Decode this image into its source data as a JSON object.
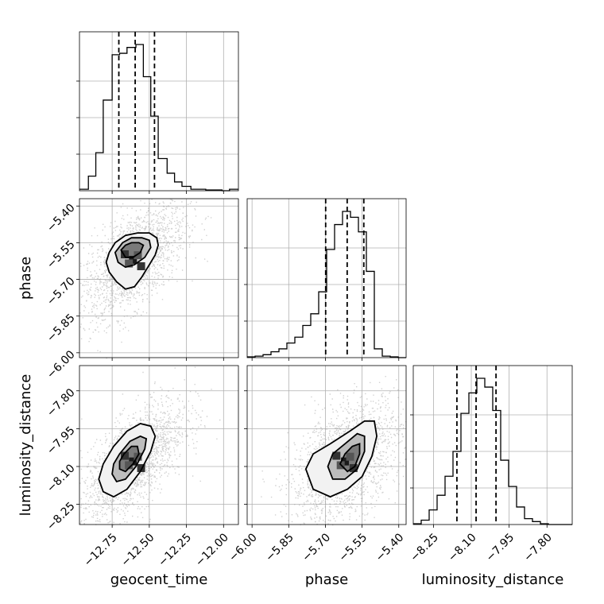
{
  "chart_data": {
    "type": "corner",
    "parameters": [
      "geocent_time",
      "phase",
      "luminosity_distance"
    ],
    "axis_labels": {
      "geocent_time": "geocent_time",
      "phase": "phase",
      "luminosity_distance": "luminosity_distance"
    },
    "ranges": {
      "geocent_time": [
        -12.97,
        -11.9
      ],
      "phase": [
        -6.02,
        -5.37
      ],
      "luminosity_distance": [
        -8.33,
        -7.7
      ]
    },
    "ticks": {
      "geocent_time": {
        "values": [
          -12.75,
          -12.5,
          -12.25,
          -12.0
        ],
        "labels": [
          "−12.75",
          "−12.50",
          "−12.25",
          "−12.00"
        ]
      },
      "phase": {
        "values": [
          -6.0,
          -5.85,
          -5.7,
          -5.55,
          -5.4
        ],
        "labels": [
          "−6.00",
          "−5.85",
          "−5.70",
          "−5.55",
          "−5.40"
        ]
      },
      "luminosity_distance": {
        "values": [
          -8.25,
          -8.1,
          -7.95,
          -7.8
        ],
        "labels": [
          "−8.25",
          "−8.10",
          "−7.95",
          "−7.80"
        ]
      }
    },
    "grid": true,
    "histograms": {
      "geocent_time": {
        "quantiles": [
          -12.705,
          -12.595,
          -12.465
        ],
        "edges": [
          -12.97,
          -12.91,
          -12.86,
          -12.81,
          -12.75,
          -12.7,
          -12.65,
          -12.59,
          -12.54,
          -12.49,
          -12.44,
          -12.38,
          -12.33,
          -12.28,
          -12.22,
          -12.17,
          -12.12,
          -12.06,
          -12.01,
          -11.96,
          -11.9
        ],
        "counts": [
          0.01,
          0.1,
          0.26,
          0.62,
          0.93,
          0.94,
          0.98,
          1.0,
          0.78,
          0.51,
          0.22,
          0.12,
          0.06,
          0.03,
          0.01,
          0.01,
          0.005,
          0.005,
          0.0,
          0.01
        ]
      },
      "phase": {
        "quantiles": [
          -5.699,
          -5.611,
          -5.543
        ],
        "edges": [
          -6.02,
          -5.9875,
          -5.955,
          -5.9225,
          -5.89,
          -5.8575,
          -5.825,
          -5.7925,
          -5.76,
          -5.7275,
          -5.695,
          -5.6625,
          -5.63,
          -5.5975,
          -5.565,
          -5.5325,
          -5.5,
          -5.4675,
          -5.435,
          -5.4025,
          -5.37
        ],
        "counts": [
          0.005,
          0.01,
          0.02,
          0.04,
          0.06,
          0.1,
          0.14,
          0.22,
          0.3,
          0.45,
          0.74,
          0.91,
          1.0,
          0.96,
          0.86,
          0.59,
          0.06,
          0.01,
          0.005,
          0.0
        ]
      },
      "luminosity_distance": {
        "quantiles": [
          -8.157,
          -8.081,
          -8.002
        ],
        "edges": [
          -8.33,
          -8.2985,
          -8.267,
          -8.2355,
          -8.204,
          -8.1725,
          -8.141,
          -8.1095,
          -8.078,
          -8.0465,
          -8.015,
          -7.9835,
          -7.952,
          -7.9205,
          -7.889,
          -7.8575,
          -7.826,
          -7.7945,
          -7.763,
          -7.7315,
          -7.7
        ],
        "counts": [
          0.005,
          0.03,
          0.1,
          0.2,
          0.33,
          0.5,
          0.76,
          0.9,
          1.0,
          0.94,
          0.78,
          0.44,
          0.26,
          0.12,
          0.04,
          0.02,
          0.005,
          0.0,
          0.0,
          0.0
        ]
      }
    },
    "scatter_2d": [
      {
        "x": "geocent_time",
        "y": "phase",
        "cluster": {
          "center_x": -12.61,
          "center_y": -5.62,
          "spread_x": 0.11,
          "spread_y": 0.075,
          "correlation": 0.6
        },
        "contour_levels": [
          [
            [
              -12.79,
              -5.63
            ],
            [
              -12.77,
              -5.67
            ],
            [
              -12.72,
              -5.71
            ],
            [
              -12.66,
              -5.74
            ],
            [
              -12.6,
              -5.73
            ],
            [
              -12.55,
              -5.69
            ],
            [
              -12.5,
              -5.64
            ],
            [
              -12.46,
              -5.6
            ],
            [
              -12.44,
              -5.56
            ],
            [
              -12.45,
              -5.53
            ],
            [
              -12.5,
              -5.51
            ],
            [
              -12.58,
              -5.51
            ],
            [
              -12.66,
              -5.52
            ],
            [
              -12.73,
              -5.55
            ],
            [
              -12.77,
              -5.59
            ]
          ],
          [
            [
              -12.73,
              -5.59
            ],
            [
              -12.71,
              -5.63
            ],
            [
              -12.66,
              -5.65
            ],
            [
              -12.6,
              -5.64
            ],
            [
              -12.53,
              -5.61
            ],
            [
              -12.49,
              -5.57
            ],
            [
              -12.5,
              -5.54
            ],
            [
              -12.55,
              -5.53
            ],
            [
              -12.62,
              -5.53
            ],
            [
              -12.68,
              -5.55
            ]
          ],
          [
            [
              -12.69,
              -5.58
            ],
            [
              -12.66,
              -5.61
            ],
            [
              -12.61,
              -5.61
            ],
            [
              -12.56,
              -5.59
            ],
            [
              -12.54,
              -5.56
            ],
            [
              -12.57,
              -5.55
            ],
            [
              -12.62,
              -5.55
            ],
            [
              -12.66,
              -5.56
            ]
          ]
        ]
      },
      {
        "x": "geocent_time",
        "y": "luminosity_distance",
        "cluster": {
          "center_x": -12.61,
          "center_y": -8.08,
          "spread_x": 0.11,
          "spread_y": 0.075,
          "correlation": 0.65
        },
        "contour_levels": [
          [
            [
              -12.84,
              -8.15
            ],
            [
              -12.81,
              -8.2
            ],
            [
              -12.74,
              -8.22
            ],
            [
              -12.65,
              -8.19
            ],
            [
              -12.56,
              -8.12
            ],
            [
              -12.49,
              -8.04
            ],
            [
              -12.46,
              -7.98
            ],
            [
              -12.49,
              -7.94
            ],
            [
              -12.56,
              -7.93
            ],
            [
              -12.65,
              -7.96
            ],
            [
              -12.74,
              -8.02
            ],
            [
              -12.81,
              -8.09
            ]
          ],
          [
            [
              -12.75,
              -8.13
            ],
            [
              -12.72,
              -8.16
            ],
            [
              -12.66,
              -8.15
            ],
            [
              -12.59,
              -8.1
            ],
            [
              -12.53,
              -8.03
            ],
            [
              -12.52,
              -7.99
            ],
            [
              -12.56,
              -7.98
            ],
            [
              -12.63,
              -8.0
            ],
            [
              -12.7,
              -8.05
            ],
            [
              -12.74,
              -8.09
            ]
          ],
          [
            [
              -12.7,
              -8.11
            ],
            [
              -12.66,
              -8.12
            ],
            [
              -12.61,
              -8.09
            ],
            [
              -12.57,
              -8.05
            ],
            [
              -12.58,
              -8.02
            ],
            [
              -12.62,
              -8.02
            ],
            [
              -12.67,
              -8.05
            ],
            [
              -12.7,
              -8.08
            ]
          ]
        ]
      },
      {
        "x": "phase",
        "y": "luminosity_distance",
        "cluster": {
          "center_x": -5.62,
          "center_y": -8.08,
          "spread_x": 0.07,
          "spread_y": 0.075,
          "correlation": 0.45
        },
        "contour_levels": [
          [
            [
              -5.78,
              -8.11
            ],
            [
              -5.75,
              -8.19
            ],
            [
              -5.68,
              -8.22
            ],
            [
              -5.61,
              -8.19
            ],
            [
              -5.55,
              -8.14
            ],
            [
              -5.51,
              -8.06
            ],
            [
              -5.49,
              -7.98
            ],
            [
              -5.5,
              -7.92
            ],
            [
              -5.54,
              -7.92
            ],
            [
              -5.6,
              -7.96
            ],
            [
              -5.68,
              -8.01
            ],
            [
              -5.75,
              -8.05
            ]
          ],
          [
            [
              -5.69,
              -8.1
            ],
            [
              -5.67,
              -8.15
            ],
            [
              -5.62,
              -8.15
            ],
            [
              -5.57,
              -8.11
            ],
            [
              -5.54,
              -8.04
            ],
            [
              -5.54,
              -7.98
            ],
            [
              -5.57,
              -7.97
            ],
            [
              -5.62,
              -8.01
            ],
            [
              -5.67,
              -8.05
            ]
          ],
          [
            [
              -5.64,
              -8.09
            ],
            [
              -5.61,
              -8.12
            ],
            [
              -5.58,
              -8.1
            ],
            [
              -5.56,
              -8.05
            ],
            [
              -5.56,
              -8.01
            ],
            [
              -5.59,
              -8.02
            ],
            [
              -5.62,
              -8.05
            ]
          ]
        ]
      }
    ]
  }
}
